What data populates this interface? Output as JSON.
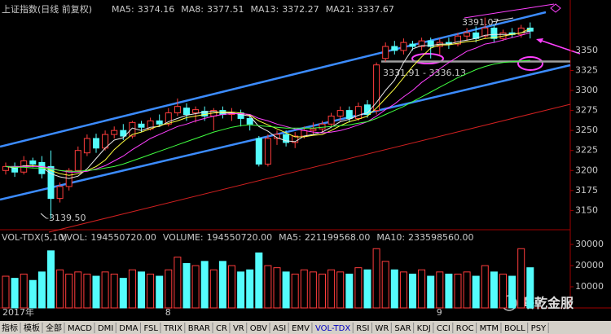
{
  "chart_data": [
    {
      "type": "candlestick",
      "title": "上证指数(日线 前复权)",
      "categories": [
        "2017年",
        null,
        null,
        null,
        null,
        null,
        null,
        null,
        null,
        null,
        null,
        null,
        null,
        null,
        null,
        null,
        null,
        null,
        "8",
        null,
        null,
        null,
        null,
        null,
        null,
        null,
        null,
        null,
        null,
        null,
        null,
        null,
        null,
        null,
        null,
        null,
        null,
        null,
        null,
        null,
        null,
        null,
        null,
        null,
        null,
        null,
        null,
        null,
        "9",
        null,
        null,
        null,
        null,
        null,
        null,
        null,
        null,
        null,
        null
      ],
      "open": [
        3200,
        3205,
        3198,
        3212,
        3210,
        3205,
        3165,
        3180,
        3200,
        3222,
        3240,
        3228,
        3245,
        3250,
        3243,
        3258,
        3252,
        3262,
        3258,
        3272,
        3278,
        3272,
        3274,
        3268,
        3275,
        3270,
        3272,
        3265,
        3240,
        3208,
        3240,
        3245,
        3235,
        3243,
        3250,
        3252,
        3258,
        3268,
        3275,
        3265,
        3282,
        3275,
        3340,
        3355,
        3350,
        3358,
        3355,
        3362,
        3355,
        3360,
        3358,
        3368,
        3372,
        3368,
        3378,
        3365,
        3372,
        3370,
        3378
      ],
      "high": [
        3210,
        3210,
        3218,
        3216,
        3218,
        3225,
        3185,
        3203,
        3230,
        3245,
        3246,
        3250,
        3255,
        3258,
        3262,
        3262,
        3266,
        3270,
        3278,
        3290,
        3284,
        3280,
        3280,
        3278,
        3280,
        3278,
        3276,
        3270,
        3243,
        3245,
        3250,
        3250,
        3248,
        3255,
        3260,
        3262,
        3272,
        3280,
        3280,
        3285,
        3288,
        3335,
        3360,
        3362,
        3365,
        3362,
        3366,
        3366,
        3365,
        3366,
        3372,
        3378,
        3380,
        3391.07,
        3382,
        3376,
        3378,
        3382,
        3385
      ],
      "low": [
        3195,
        3192,
        3195,
        3204,
        3190,
        3139.5,
        3160,
        3175,
        3198,
        3218,
        3222,
        3225,
        3240,
        3238,
        3240,
        3248,
        3250,
        3255,
        3255,
        3268,
        3262,
        3260,
        3262,
        3250,
        3265,
        3262,
        3255,
        3250,
        3205,
        3205,
        3232,
        3230,
        3228,
        3240,
        3245,
        3248,
        3255,
        3262,
        3260,
        3262,
        3266,
        3270,
        3336,
        3345,
        3345,
        3350,
        3350,
        3340,
        3345,
        3352,
        3355,
        3362,
        3360,
        3365,
        3360,
        3362,
        3366,
        3366,
        3365
      ],
      "close": [
        3205,
        3198,
        3212,
        3208,
        3196,
        3165,
        3180,
        3200,
        3225,
        3240,
        3228,
        3245,
        3250,
        3243,
        3260,
        3254,
        3262,
        3258,
        3272,
        3280,
        3270,
        3276,
        3268,
        3275,
        3270,
        3272,
        3265,
        3258,
        3208,
        3240,
        3245,
        3235,
        3243,
        3250,
        3252,
        3258,
        3268,
        3275,
        3265,
        3280,
        3270,
        3331.91,
        3355,
        3350,
        3360,
        3355,
        3362,
        3355,
        3360,
        3358,
        3368,
        3372,
        3365,
        3378,
        3365,
        3372,
        3370,
        3378,
        3374.16
      ],
      "up_color": "#ff3c3c",
      "down_color": "#54fcfc",
      "series": [
        {
          "name": "MA5:",
          "color": "#e8e8e8",
          "values": [
            3205,
            3203,
            3206,
            3206,
            3204,
            3196,
            3192,
            3190,
            3193,
            3202,
            3215,
            3228,
            3238,
            3241,
            3253,
            3250,
            3254,
            3255,
            3261,
            3265,
            3269,
            3271,
            3273,
            3274,
            3272,
            3272,
            3270,
            3268,
            3255,
            3249,
            3241,
            3237,
            3236,
            3243,
            3245,
            3248,
            3254,
            3261,
            3264,
            3269,
            3272,
            3285,
            3300,
            3313,
            3335,
            3352,
            3356,
            3356,
            3358,
            3358,
            3361,
            3363,
            3365,
            3369,
            3370,
            3370,
            3370,
            3372,
            3374.16
          ]
        },
        {
          "name": "MA8:",
          "color": "#ffff40",
          "values": [
            3205,
            3204,
            3205,
            3206,
            3205,
            3200,
            3196,
            3194,
            3196,
            3200,
            3205,
            3213,
            3226,
            3236,
            3245,
            3248,
            3252,
            3256,
            3259,
            3262,
            3266,
            3268,
            3270,
            3272,
            3273,
            3273,
            3272,
            3269,
            3262,
            3257,
            3252,
            3247,
            3242,
            3242,
            3244,
            3245,
            3250,
            3256,
            3261,
            3264,
            3268,
            3278,
            3290,
            3302,
            3316,
            3330,
            3342,
            3353,
            3357,
            3357,
            3359,
            3361,
            3362,
            3365,
            3366,
            3368,
            3370,
            3372,
            3377.51
          ]
        },
        {
          "name": "MA13:",
          "color": "#ff40ff",
          "values": [
            3205,
            3205,
            3205,
            3205,
            3205,
            3203,
            3200,
            3198,
            3198,
            3199,
            3202,
            3206,
            3212,
            3218,
            3226,
            3233,
            3240,
            3245,
            3250,
            3255,
            3258,
            3262,
            3265,
            3268,
            3270,
            3271,
            3271,
            3270,
            3265,
            3262,
            3258,
            3255,
            3252,
            3250,
            3248,
            3247,
            3248,
            3250,
            3253,
            3257,
            3261,
            3268,
            3276,
            3283,
            3292,
            3300,
            3310,
            3318,
            3327,
            3335,
            3342,
            3349,
            3353,
            3358,
            3360,
            3363,
            3366,
            3369,
            3372.27
          ]
        },
        {
          "name": "MA21:",
          "color": "#40ff40",
          "values": [
            3205,
            3204,
            3204,
            3203,
            3203,
            3202,
            3200,
            3199,
            3199,
            3200,
            3201,
            3203,
            3205,
            3208,
            3212,
            3216,
            3220,
            3224,
            3228,
            3232,
            3236,
            3240,
            3244,
            3248,
            3251,
            3254,
            3256,
            3257,
            3256,
            3255,
            3254,
            3253,
            3253,
            3253,
            3253,
            3254,
            3255,
            3256,
            3257,
            3259,
            3261,
            3265,
            3270,
            3275,
            3280,
            3286,
            3292,
            3298,
            3304,
            3310,
            3316,
            3321,
            3326,
            3330,
            3333,
            3335,
            3336,
            3337,
            3337.67
          ]
        }
      ],
      "ylim": [
        3128,
        3410
      ],
      "yticks": [
        3150,
        3175,
        3200,
        3225,
        3250,
        3275,
        3300,
        3325,
        3350
      ],
      "support_line": 3336.13,
      "annotations": [
        "3331.91 - 3336.13",
        "3391.07",
        "-3139.50"
      ]
    },
    {
      "type": "bar",
      "title": "VOL-TDX(5,10)",
      "header_items": [
        {
          "name": "VVOL:",
          "color": "#e8e8e8",
          "value": {
            "value": 194550720,
            "label": "194550720.00"
          }
        },
        {
          "name": "VOLUME:",
          "color": "#ffff40",
          "value": {
            "value": 194550720,
            "label": "194550720.00"
          }
        },
        {
          "name": "MA5:",
          "color": "#ff40ff",
          "value": {
            "value": 221199568,
            "label": "221199568.00"
          }
        },
        {
          "name": "MA10:",
          "color": "#40ff40",
          "value": {
            "value": 233598560,
            "label": "233598560.00"
          }
        }
      ],
      "values": [
        15000,
        14000,
        16000,
        13000,
        17000,
        27000,
        18000,
        16000,
        17000,
        16000,
        15000,
        17000,
        16000,
        14000,
        18000,
        17000,
        16000,
        15000,
        18000,
        24000,
        21000,
        20000,
        22000,
        18000,
        22000,
        20000,
        17000,
        18000,
        26000,
        20000,
        19000,
        17000,
        16000,
        18000,
        17000,
        16000,
        18000,
        17000,
        16000,
        19000,
        18000,
        28000,
        22000,
        18000,
        17000,
        16000,
        18000,
        15000,
        17000,
        16000,
        16000,
        17000,
        15000,
        20000,
        17000,
        16000,
        15000,
        28000,
        19000
      ],
      "ylim": [
        0,
        35800
      ],
      "yticks": [
        10000,
        20000,
        30000
      ]
    }
  ],
  "toolbar": {
    "tabs": [
      "指标",
      "模板",
      "全部",
      "MACD",
      "DMI",
      "DMA",
      "FSL",
      "TRIX",
      "BRAR",
      "CR",
      "VR",
      "OBV",
      "ASI",
      "EMV",
      "VOL-TDX",
      "RSI",
      "WR",
      "SAR",
      "KDJ",
      "CCI",
      "ROC",
      "MTM",
      "BOLL",
      "PSY"
    ],
    "active": "VOL-TDX"
  },
  "watermark": "曙乾金服"
}
